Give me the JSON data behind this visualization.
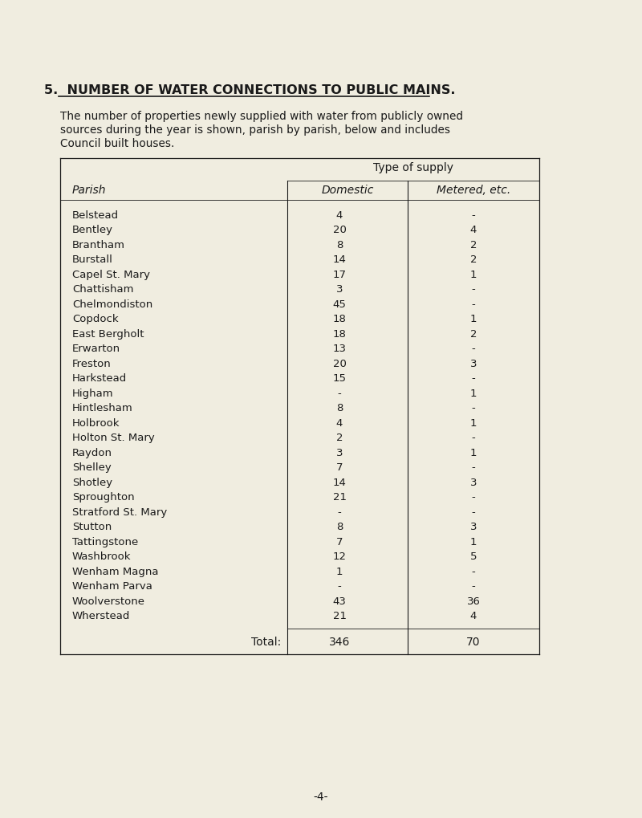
{
  "title": "5.  NUMBER OF WATER CONNECTIONS TO PUBLIC MAINS.",
  "intro_lines": [
    "The number of properties newly supplied with water from publicly owned",
    "sources during the year is shown, parish by parish, below and includes",
    "Council built houses."
  ],
  "type_of_supply": "Type of supply",
  "col_parish": "Parish",
  "col_domestic": "Domestic",
  "col_metered": "Metered, etc.",
  "parishes": [
    "Belstead",
    "Bentley",
    "Brantham",
    "Burstall",
    "Capel St. Mary",
    "Chattisham",
    "Chelmondiston",
    "Copdock",
    "East Bergholt",
    "Erwarton",
    "Freston",
    "Harkstead",
    "Higham",
    "Hintlesham",
    "Holbrook",
    "Holton St. Mary",
    "Raydon",
    "Shelley",
    "Shotley",
    "Sproughton",
    "Stratford St. Mary",
    "Stutton",
    "Tattingstone",
    "Washbrook",
    "Wenham Magna",
    "Wenham Parva",
    "Woolverstone",
    "Wherstead"
  ],
  "domestic": [
    "4",
    "20",
    "8",
    "14",
    "17",
    "3",
    "45",
    "18",
    "18",
    "13",
    "20",
    "15",
    "-",
    "8",
    "4",
    "2",
    "3",
    "7",
    "14",
    "21",
    "-",
    "8",
    "7",
    "12",
    "1",
    "-",
    "43",
    "21"
  ],
  "metered": [
    "-",
    "4",
    "2",
    "2",
    "1",
    "-",
    "-",
    "1",
    "2",
    "-",
    "3",
    "-",
    "1",
    "-",
    "1",
    "-",
    "1",
    "-",
    "3",
    "-",
    "-",
    "3",
    "1",
    "5",
    "-",
    "-",
    "36",
    "4"
  ],
  "total_domestic": "346",
  "total_metered": "70",
  "bg_color": "#f0ede0",
  "text_color": "#1a1a1a",
  "page_number": "-4-"
}
